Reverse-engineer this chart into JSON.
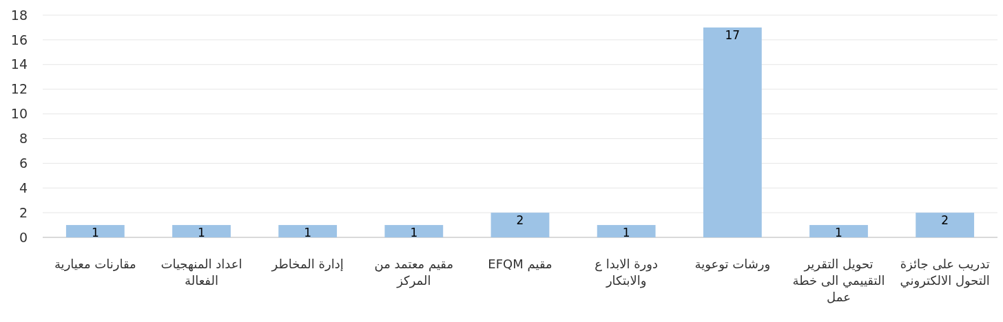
{
  "chart_data": {
    "type": "bar",
    "categories": [
      "مقارنات معيارية",
      "اعداد المنهجيات الفعالة",
      "إدارة المخاطر",
      "مقيم معتمد من المركز",
      "مقيم EFQM",
      "دورة الابدا ع والابتكار",
      "ورشات توعوية",
      "تحويل التقرير التقييمي الى خطة عمل",
      "تدريب على جائزة التحول الالكتروني"
    ],
    "values": [
      1,
      1,
      1,
      1,
      2,
      1,
      17,
      1,
      2
    ],
    "color": "#9dc3e6",
    "ylim": [
      0,
      18
    ],
    "yticks": [
      0,
      2,
      4,
      6,
      8,
      10,
      12,
      14,
      16,
      18
    ],
    "grid": "y",
    "data_labels": true
  }
}
